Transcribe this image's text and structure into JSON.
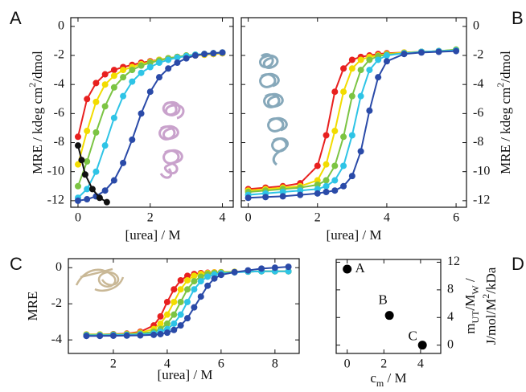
{
  "chart_data": [
    {
      "type": "line",
      "panel": "A",
      "xlabel": "[urea]  /  M",
      "ylabel": [
        "MRE  /  kdeg cm",
        "2",
        "/dmol"
      ],
      "xlim": [
        -0.2,
        4.3
      ],
      "ylim": [
        -12.45,
        0.6
      ],
      "xticks": [
        0,
        2,
        4
      ],
      "yticks": [
        0,
        -2,
        -4,
        -6,
        -8,
        -10,
        -12
      ],
      "x": [
        0,
        0.25,
        0.5,
        0.75,
        1,
        1.25,
        1.5,
        1.75,
        2,
        2.25,
        2.5,
        2.75,
        3,
        3.25,
        3.5,
        3.75,
        4
      ],
      "series": [
        {
          "color": "#e8201f",
          "values": [
            -7.6,
            -5.0,
            -3.9,
            -3.3,
            -3.0,
            -2.8,
            -2.65,
            -2.5,
            -2.4,
            -2.3,
            -2.2,
            -2.1,
            -2.05,
            -2.0,
            -1.95,
            -1.9,
            -1.85
          ]
        },
        {
          "color": "#f2dc00",
          "values": [
            -9.5,
            -7.2,
            -5.2,
            -4.0,
            -3.4,
            -3.0,
            -2.8,
            -2.6,
            -2.45,
            -2.3,
            -2.2,
            -2.1,
            -2.05,
            -2.0,
            -1.95,
            -1.9,
            -1.85
          ]
        },
        {
          "color": "#7cc443",
          "values": [
            -11.0,
            -9.3,
            -7.3,
            -5.5,
            -4.2,
            -3.5,
            -3.0,
            -2.7,
            -2.5,
            -2.35,
            -2.2,
            -2.1,
            -2.0,
            -1.95,
            -1.9,
            -1.85,
            -1.8
          ]
        },
        {
          "color": "#2ec4e6",
          "values": [
            -11.8,
            -11.2,
            -10.0,
            -8.2,
            -6.3,
            -4.8,
            -3.8,
            -3.2,
            -2.8,
            -2.5,
            -2.3,
            -2.15,
            -2.05,
            -1.95,
            -1.9,
            -1.85,
            -1.8
          ]
        },
        {
          "color": "#2a4aa8",
          "values": [
            -12.0,
            -11.9,
            -11.7,
            -11.3,
            -10.6,
            -9.4,
            -7.8,
            -6.0,
            -4.5,
            -3.5,
            -2.9,
            -2.5,
            -2.2,
            -2.0,
            -1.9,
            -1.85,
            -1.8
          ]
        },
        {
          "color": "#111111",
          "x": [
            0,
            0.1,
            0.2,
            0.4,
            0.6,
            0.8
          ],
          "values": [
            -8.2,
            -9.2,
            -10.2,
            -11.2,
            -11.8,
            -12.1
          ]
        }
      ]
    },
    {
      "type": "line",
      "panel": "B",
      "xlabel": "[urea]  /  M",
      "ylabel": [
        "MRE  /  kdeg cm",
        "2",
        "/dmol"
      ],
      "xlim": [
        -0.2,
        6.3
      ],
      "ylim": [
        -12.45,
        0.6
      ],
      "xticks": [
        0,
        2,
        4,
        6
      ],
      "yticks": [
        0,
        -2,
        -4,
        -6,
        -8,
        -10,
        -12
      ],
      "x": [
        0,
        0.5,
        1,
        1.5,
        2,
        2.25,
        2.5,
        2.75,
        3,
        3.25,
        3.5,
        3.75,
        4,
        4.5,
        5,
        5.5,
        6
      ],
      "series": [
        {
          "color": "#e8201f",
          "values": [
            -11.2,
            -11.1,
            -11.0,
            -10.8,
            -9.6,
            -7.5,
            -4.5,
            -2.9,
            -2.3,
            -2.1,
            -2.0,
            -1.9,
            -1.85,
            -1.8,
            -1.75,
            -1.7,
            -1.65
          ]
        },
        {
          "color": "#f2dc00",
          "values": [
            -11.3,
            -11.2,
            -11.1,
            -11.0,
            -10.6,
            -9.5,
            -7.2,
            -4.5,
            -2.9,
            -2.3,
            -2.1,
            -2.0,
            -1.9,
            -1.8,
            -1.75,
            -1.7,
            -1.6
          ]
        },
        {
          "color": "#7cc443",
          "values": [
            -11.4,
            -11.3,
            -11.2,
            -11.1,
            -10.9,
            -10.6,
            -9.6,
            -7.6,
            -4.8,
            -3.0,
            -2.3,
            -2.05,
            -1.95,
            -1.85,
            -1.75,
            -1.7,
            -1.6
          ]
        },
        {
          "color": "#2ec4e6",
          "values": [
            -11.6,
            -11.5,
            -11.4,
            -11.3,
            -11.2,
            -11.0,
            -10.6,
            -9.6,
            -7.5,
            -4.8,
            -3.0,
            -2.3,
            -2.0,
            -1.85,
            -1.75,
            -1.7,
            -1.65
          ]
        },
        {
          "color": "#2a4aa8",
          "values": [
            -11.8,
            -11.75,
            -11.7,
            -11.6,
            -11.5,
            -11.4,
            -11.3,
            -11.0,
            -10.3,
            -8.6,
            -5.8,
            -3.5,
            -2.4,
            -1.9,
            -1.8,
            -1.75,
            -1.7
          ]
        }
      ]
    },
    {
      "type": "line",
      "panel": "C",
      "xlabel": "[urea]  /  M",
      "ylabel": "MRE",
      "xlim": [
        0.33,
        8.9
      ],
      "ylim": [
        -4.75,
        0.5
      ],
      "xticks": [
        2,
        4,
        6,
        8
      ],
      "yticks": [
        0,
        -2,
        -4
      ],
      "x": [
        1,
        1.5,
        2,
        2.5,
        3,
        3.5,
        3.75,
        4,
        4.25,
        4.5,
        4.75,
        5,
        5.25,
        5.5,
        5.75,
        6,
        6.5,
        7,
        7.5,
        8,
        8.5
      ],
      "series": [
        {
          "color": "#e8201f",
          "values": [
            -3.7,
            -3.7,
            -3.68,
            -3.65,
            -3.55,
            -3.2,
            -2.7,
            -1.9,
            -1.2,
            -0.7,
            -0.45,
            -0.35,
            -0.3,
            -0.28,
            -0.26,
            -0.25,
            -0.23,
            -0.22,
            -0.2,
            -0.2,
            -0.2
          ]
        },
        {
          "color": "#f2dc00",
          "values": [
            -3.7,
            -3.7,
            -3.7,
            -3.67,
            -3.6,
            -3.4,
            -3.1,
            -2.6,
            -1.9,
            -1.2,
            -0.7,
            -0.45,
            -0.35,
            -0.3,
            -0.27,
            -0.25,
            -0.23,
            -0.22,
            -0.2,
            -0.2,
            -0.2
          ]
        },
        {
          "color": "#7cc443",
          "values": [
            -3.72,
            -3.72,
            -3.7,
            -3.7,
            -3.65,
            -3.55,
            -3.4,
            -3.1,
            -2.6,
            -1.9,
            -1.2,
            -0.75,
            -0.5,
            -0.35,
            -0.3,
            -0.27,
            -0.24,
            -0.22,
            -0.2,
            -0.2,
            -0.2
          ]
        },
        {
          "color": "#2ec4e6",
          "values": [
            -3.75,
            -3.75,
            -3.73,
            -3.72,
            -3.7,
            -3.65,
            -3.55,
            -3.4,
            -3.1,
            -2.6,
            -1.9,
            -1.2,
            -0.75,
            -0.5,
            -0.38,
            -0.32,
            -0.26,
            -0.22,
            -0.2,
            -0.2,
            -0.2
          ]
        },
        {
          "color": "#2a4aa8",
          "values": [
            -3.78,
            -3.78,
            -3.77,
            -3.76,
            -3.75,
            -3.72,
            -3.68,
            -3.6,
            -3.45,
            -3.2,
            -2.8,
            -2.2,
            -1.6,
            -1.0,
            -0.6,
            -0.4,
            -0.25,
            -0.15,
            -0.05,
            0.0,
            0.05
          ]
        }
      ]
    },
    {
      "type": "scatter",
      "panel": "D",
      "xlabel": [
        "c",
        "m",
        "  /  M"
      ],
      "ylabel": [
        [
          "m",
          "UT",
          "/M",
          "W",
          " /"
        ],
        [
          "J/mol/M",
          "2",
          "/kDa"
        ]
      ],
      "xlim": [
        -0.6,
        5.1
      ],
      "ylim": [
        -1.2,
        12.4
      ],
      "xticks": [
        0,
        2,
        4
      ],
      "yticks": [
        0,
        4,
        8,
        12
      ],
      "x": [
        0,
        2.3,
        4.1
      ],
      "values": [
        11,
        4.3,
        0
      ],
      "labels": [
        "A",
        "B",
        "C"
      ],
      "color": "#000000"
    }
  ]
}
